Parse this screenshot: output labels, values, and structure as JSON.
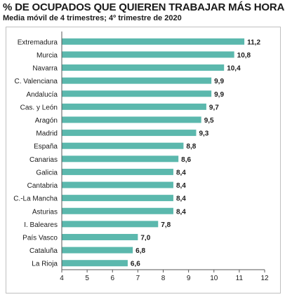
{
  "header": {
    "title": "% DE OCUPADOS QUE QUIEREN TRABAJAR MÁS HORAS",
    "subtitle": "Media móvil de 4 trimestres; 4º trimestre de 2020"
  },
  "colors": {
    "bar": "#5bb8ad",
    "axis": "#595959",
    "text": "#1a1a1a"
  },
  "chart_data": {
    "type": "bar",
    "orientation": "horizontal",
    "title": "% DE OCUPADOS QUE QUIEREN TRABAJAR MÁS HORAS",
    "subtitle": "Media móvil de 4 trimestres; 4º trimestre de 2020",
    "categories": [
      "Extremadura",
      "Murcia",
      "Navarra",
      "C. Valenciana",
      "Andalucía",
      "Cas. y León",
      "Aragón",
      "Madrid",
      "España",
      "Canarias",
      "Galicia",
      "Cantabria",
      "C.-La Mancha",
      "Asturias",
      "I. Baleares",
      "País Vasco",
      "Cataluña",
      "La Rioja"
    ],
    "values": [
      11.2,
      10.8,
      10.4,
      9.9,
      9.9,
      9.7,
      9.5,
      9.3,
      8.8,
      8.6,
      8.4,
      8.4,
      8.4,
      8.4,
      7.8,
      7.0,
      6.8,
      6.6
    ],
    "value_labels": [
      "11,2",
      "10,8",
      "10,4",
      "9,9",
      "9,9",
      "9,7",
      "9,5",
      "9,3",
      "8,8",
      "8,6",
      "8,4",
      "8,4",
      "8,4",
      "8,4",
      "7,8",
      "7,0",
      "6,8",
      "6,6"
    ],
    "xlim": [
      4,
      12
    ],
    "xticks": [
      "4",
      "5",
      "6",
      "7",
      "8",
      "9",
      "10",
      "11",
      "12"
    ],
    "grid": false,
    "legend": "none"
  }
}
